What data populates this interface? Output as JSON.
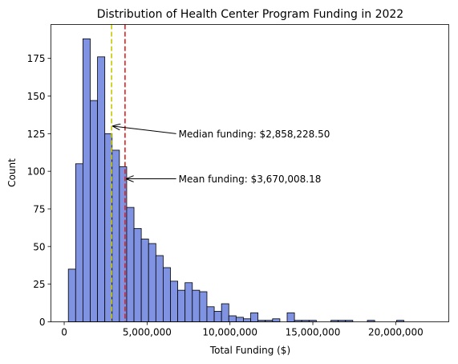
{
  "chart_data": {
    "type": "bar",
    "title": "Distribution of Health Center Program Funding in 2022",
    "xlabel": "Total Funding ($)",
    "ylabel": "Count",
    "xlim": [
      -800000,
      23200000
    ],
    "ylim": [
      0,
      197.5
    ],
    "x_ticks": [
      0,
      5000000,
      10000000,
      15000000,
      20000000
    ],
    "x_tick_labels": [
      "0",
      "5,000,000",
      "10,000,000",
      "15,000,000",
      "20,000,000"
    ],
    "y_ticks": [
      0,
      25,
      50,
      75,
      100,
      125,
      150,
      175
    ],
    "y_tick_labels": [
      "0",
      "25",
      "50",
      "75",
      "100",
      "125",
      "150",
      "175"
    ],
    "grid": false,
    "bar_color": "#8093e3",
    "bar_edge_color": "#000000",
    "bins": {
      "start": 250000,
      "width": 440000,
      "counts": [
        35,
        105,
        188,
        147,
        176,
        125,
        114,
        103,
        76,
        62,
        55,
        52,
        44,
        36,
        27,
        21,
        26,
        21,
        20,
        10,
        7,
        12,
        4,
        3,
        2,
        6,
        1,
        1,
        2,
        0,
        6,
        1,
        1,
        1,
        0,
        0,
        1,
        1,
        1,
        0,
        0,
        1,
        0,
        0,
        0,
        1
      ]
    },
    "reference_lines": [
      {
        "name": "median",
        "value": 2858228.5,
        "color": "#c8c800"
      },
      {
        "name": "mean",
        "value": 3670008.18,
        "color": "#e02020"
      }
    ],
    "annotations": [
      {
        "text": "Median funding: $2,858,228.50",
        "point_x": 2858228.5,
        "point_y": 130,
        "text_x": 6900000,
        "text_y": 125
      },
      {
        "text": "Mean funding: $3,670,008.18",
        "point_x": 3670008.18,
        "point_y": 95,
        "text_x": 6900000,
        "text_y": 95
      }
    ]
  }
}
